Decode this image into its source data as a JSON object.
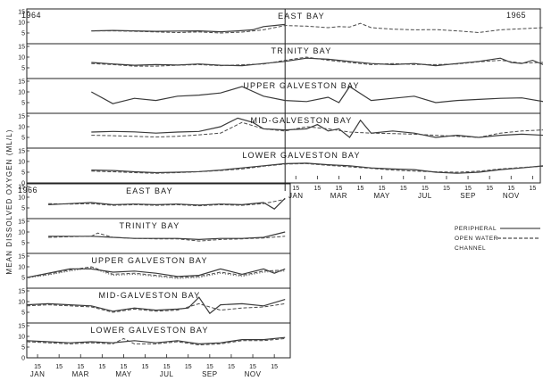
{
  "chart_data": [
    {
      "type": "line",
      "period": "1964-1965",
      "year_labels": [
        "1964",
        "1965"
      ],
      "ylabel": "MEAN DISSOLVED OXYGEN (ML/L)",
      "x_month_labels": [
        "JAN",
        "MAR",
        "MAY",
        "JUL",
        "SEP",
        "NOV"
      ],
      "x_day_label": "15",
      "legend": [
        "PERIPHERAL",
        "OPEN WATER",
        "CHANNEL"
      ],
      "ylim": [
        0,
        15
      ],
      "panels": [
        {
          "title": "EAST BAY",
          "series": [
            {
              "style": "solid",
              "x": [
                3,
                4,
                5,
                6,
                7,
                8,
                9,
                9.8,
                10.5,
                11,
                12
              ],
              "y": [
                6,
                6.2,
                6,
                5.8,
                5.9,
                6,
                5.6,
                6,
                6.5,
                8,
                9
              ]
            },
            {
              "style": "dashed",
              "x": [
                3,
                4,
                5,
                6,
                7,
                8,
                9,
                10,
                11,
                12,
                13,
                14,
                14.5,
                15,
                15.5,
                16,
                17,
                18,
                19,
                20,
                21,
                22,
                23,
                24,
                24.8
              ],
              "y": [
                6,
                6,
                5.8,
                5.5,
                5.2,
                5.5,
                5,
                5.4,
                6.5,
                8.5,
                8.2,
                7.5,
                8,
                7.8,
                9.5,
                7.5,
                6.8,
                6.5,
                6.6,
                6,
                5.2,
                6.5,
                7,
                7.5,
                7
              ]
            }
          ]
        },
        {
          "title": "TRINITY BAY",
          "series": [
            {
              "style": "solid",
              "x": [
                3,
                4,
                5,
                6,
                7,
                8,
                9,
                10,
                11,
                12,
                13,
                14,
                15,
                16,
                17,
                18,
                19,
                20,
                21,
                22,
                22.5,
                23,
                23.5,
                24,
                24.8
              ],
              "y": [
                7.5,
                6.8,
                6.2,
                6.5,
                6.3,
                6.8,
                6.2,
                6,
                7,
                8,
                9.5,
                9,
                8,
                7,
                6.5,
                7,
                6,
                7,
                8,
                9.5,
                7.5,
                7,
                8.5,
                6.5,
                8
              ]
            },
            {
              "style": "dashed",
              "x": [
                3,
                4,
                5,
                6,
                7,
                8,
                9,
                10,
                11,
                12,
                13,
                14,
                15,
                16,
                17,
                18,
                19,
                20,
                21,
                22,
                23,
                24,
                24.8
              ],
              "y": [
                7,
                6.5,
                5.8,
                5.8,
                6.2,
                6.5,
                6,
                6.4,
                6.8,
                8.5,
                10,
                8.5,
                7.5,
                6.5,
                7,
                6.6,
                6.5,
                6.8,
                7.8,
                8.5,
                7.2,
                7.5,
                7.5
              ]
            }
          ]
        },
        {
          "title": "UPPER GALVESTON BAY",
          "series": [
            {
              "style": "solid",
              "x": [
                3,
                4,
                5,
                6,
                7,
                8,
                9,
                10,
                11,
                12,
                13,
                14,
                14.5,
                15,
                16,
                17,
                18,
                19,
                20,
                21,
                22,
                23,
                24,
                24.8
              ],
              "y": [
                10,
                4.5,
                7,
                6,
                8,
                8.5,
                9.5,
                12.5,
                8,
                6,
                5.5,
                7.5,
                5,
                12.5,
                6,
                7,
                8,
                5,
                6,
                6.5,
                7,
                7.2,
                5.5,
                6
              ]
            }
          ]
        },
        {
          "title": "MID-GALVESTON BAY",
          "series": [
            {
              "style": "solid",
              "x": [
                3,
                4,
                5,
                6,
                7,
                8,
                9,
                9.8,
                10.5,
                11,
                12,
                13,
                13.5,
                14,
                14.5,
                15,
                15.5,
                16,
                17,
                18,
                19,
                20,
                21,
                22,
                23,
                24,
                24.8
              ],
              "y": [
                7.5,
                7.8,
                7.6,
                7,
                7.5,
                7.8,
                10,
                14,
                12,
                9,
                8.5,
                9,
                11,
                8,
                9,
                5,
                13,
                7,
                8,
                7,
                5,
                6,
                5,
                6,
                6.5,
                6,
                7
              ]
            },
            {
              "style": "dashed",
              "x": [
                3,
                4,
                5,
                6,
                7,
                8,
                9,
                10,
                11,
                12,
                13,
                14,
                15,
                16,
                17,
                18,
                19,
                20,
                21,
                22,
                23,
                24,
                24.8
              ],
              "y": [
                6,
                5.8,
                5.5,
                5.2,
                5.5,
                6.2,
                7,
                12,
                9,
                8,
                10,
                9,
                7.5,
                7,
                6.8,
                6.5,
                6,
                5.5,
                5,
                7,
                8,
                8.5,
                8
              ]
            }
          ]
        },
        {
          "title": "LOWER GALVESTON BAY",
          "series": [
            {
              "style": "solid",
              "x": [
                3,
                4,
                5,
                6,
                7,
                8,
                9,
                10,
                11,
                12,
                13,
                14,
                15,
                16,
                17,
                18,
                19,
                20,
                21,
                22,
                23,
                24,
                24.8
              ],
              "y": [
                6,
                5.8,
                5.2,
                4.8,
                5,
                5.3,
                6,
                7,
                8,
                9,
                9.2,
                8.5,
                8,
                7,
                6.5,
                6.2,
                5,
                4.5,
                5,
                6.2,
                7,
                8,
                8.5
              ]
            },
            {
              "style": "dashed",
              "x": [
                3,
                4,
                5,
                6,
                7,
                8,
                9,
                10,
                11,
                12,
                13,
                14,
                15,
                16,
                17,
                18,
                19,
                20,
                21,
                22,
                23,
                24,
                24.8
              ],
              "y": [
                5.5,
                5.2,
                4.8,
                4.5,
                4.8,
                5.2,
                5.8,
                6.5,
                7.8,
                8.8,
                9,
                8.2,
                7.5,
                6.8,
                6,
                5.5,
                5.2,
                5,
                5.5,
                6.5,
                7.2,
                7.8,
                8
              ]
            }
          ]
        }
      ]
    },
    {
      "type": "line",
      "period": "1966",
      "year_labels": [
        "1966"
      ],
      "ylabel": "MEAN DISSOLVED OXYGEN (ML/L)",
      "x_month_labels": [
        "JAN",
        "MAR",
        "MAY",
        "JUL",
        "SEP",
        "NOV"
      ],
      "x_day_label": "15",
      "ylim": [
        0,
        15
      ],
      "panels": [
        {
          "title": "EAST BAY",
          "series": [
            {
              "style": "solid",
              "x": [
                1,
                2,
                3,
                4,
                5,
                6,
                7,
                8,
                9,
                10,
                11,
                11.5,
                12
              ],
              "y": [
                6.5,
                7,
                7.5,
                6.5,
                6.8,
                6.5,
                6.8,
                6.3,
                6.8,
                6.5,
                7.5,
                4.5,
                9.5
              ]
            },
            {
              "style": "dashed",
              "x": [
                1,
                2,
                3,
                4,
                5,
                6,
                7,
                8,
                9,
                10,
                11,
                12
              ],
              "y": [
                7,
                6.8,
                7,
                6.2,
                6.5,
                6.2,
                6.5,
                6,
                6.5,
                6.2,
                7,
                9
              ]
            }
          ]
        },
        {
          "title": "TRINITY BAY",
          "series": [
            {
              "style": "solid",
              "x": [
                1,
                2,
                3,
                4,
                5,
                6,
                7,
                8,
                9,
                10,
                11,
                12
              ],
              "y": [
                8,
                8,
                8,
                7.5,
                7,
                7,
                7,
                6.5,
                7,
                7,
                7.5,
                10
              ]
            },
            {
              "style": "dashed",
              "x": [
                1,
                2,
                3,
                3.3,
                4,
                5,
                6,
                7,
                8,
                9,
                10,
                11,
                12
              ],
              "y": [
                7.5,
                7.8,
                8,
                9.5,
                7.5,
                7,
                6.8,
                6.8,
                5.8,
                6.5,
                6.8,
                7.2,
                8
              ]
            }
          ]
        },
        {
          "title": "UPPER GALVESTON BAY",
          "series": [
            {
              "style": "solid",
              "x": [
                0,
                1,
                2,
                3,
                4,
                5,
                6,
                7,
                8,
                9,
                10,
                11,
                11.5,
                12
              ],
              "y": [
                5,
                7,
                9,
                9,
                7.5,
                8,
                7,
                5.5,
                6,
                9,
                6.5,
                9,
                7,
                9
              ]
            },
            {
              "style": "dashed",
              "x": [
                0,
                1,
                2,
                3,
                4,
                5,
                6,
                7,
                8,
                9,
                10,
                11,
                12
              ],
              "y": [
                5,
                6.5,
                8.5,
                10,
                6.5,
                7,
                6,
                5,
                5.5,
                7.5,
                6,
                8,
                8.5
              ]
            },
            {
              "style": "dotted",
              "x": [
                0,
                1,
                2,
                3,
                4,
                5,
                6,
                7,
                8,
                9,
                10,
                11,
                12
              ],
              "y": [
                4.8,
                6.2,
                8,
                9.5,
                6,
                6.5,
                5.5,
                4.5,
                5,
                7,
                5.5,
                7.5,
                8
              ]
            }
          ]
        },
        {
          "title": "MID-GALVESTON BAY",
          "series": [
            {
              "style": "solid",
              "x": [
                0,
                1,
                2,
                3,
                4,
                5,
                6,
                7,
                7.5,
                8,
                8.5,
                9,
                10,
                11,
                12
              ],
              "y": [
                8.5,
                9,
                8.5,
                8,
                5.5,
                7,
                6,
                6.5,
                7,
                12,
                4.5,
                8.5,
                9,
                8,
                11
              ]
            },
            {
              "style": "dashed",
              "x": [
                0,
                1,
                2,
                3,
                4,
                5,
                6,
                7,
                8,
                9,
                10,
                11,
                12
              ],
              "y": [
                8,
                8.5,
                8,
                7.5,
                5,
                6.5,
                5.5,
                6,
                9,
                6,
                7,
                7.5,
                9
              ]
            }
          ]
        },
        {
          "title": "LOWER GALVESTON BAY",
          "series": [
            {
              "style": "solid",
              "x": [
                0,
                1,
                2,
                3,
                4,
                5,
                6,
                7,
                8,
                9,
                10,
                11,
                12
              ],
              "y": [
                8,
                7.5,
                7,
                7.5,
                7,
                8,
                7,
                8,
                6.5,
                7,
                8.5,
                8.5,
                9.5
              ]
            },
            {
              "style": "dashed",
              "x": [
                0,
                1,
                2,
                3,
                4,
                4.5,
                5,
                6,
                7,
                8,
                9,
                10,
                11,
                12
              ],
              "y": [
                7.5,
                7,
                6.5,
                7,
                6.5,
                9,
                6.5,
                6.5,
                7.5,
                6,
                6.5,
                8,
                8,
                9
              ]
            }
          ]
        }
      ]
    }
  ]
}
